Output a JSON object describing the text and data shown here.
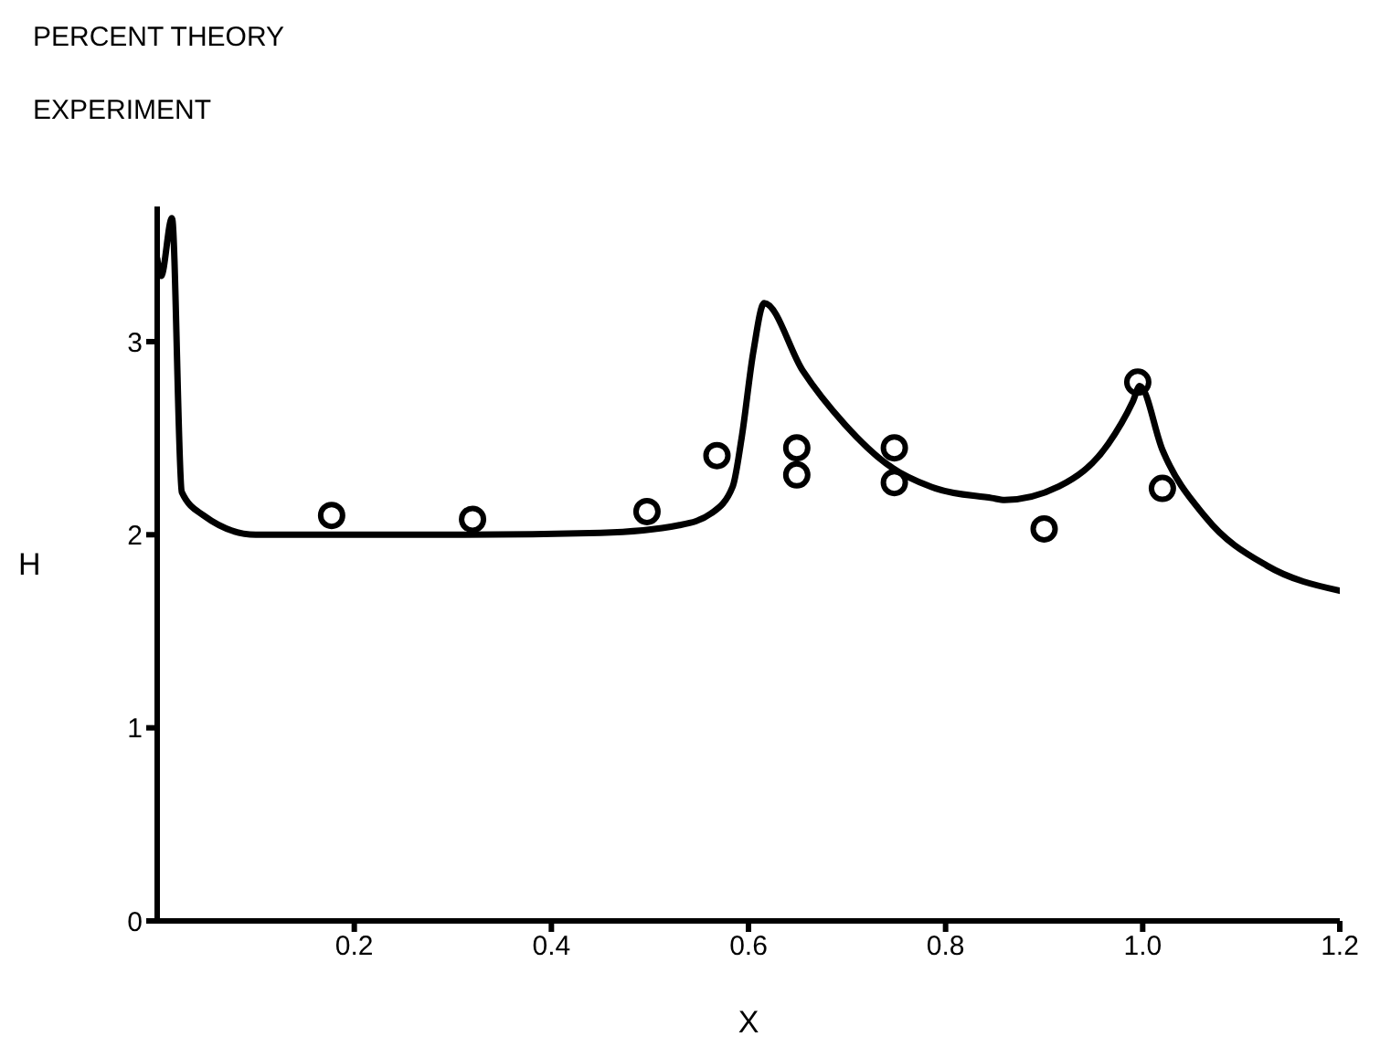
{
  "chart_data": {
    "type": "line",
    "xlabel": "X",
    "ylabel": "H",
    "annotations": [
      "PERCENT THEORY",
      "EXPERIMENT"
    ],
    "xlim": [
      0,
      1.2
    ],
    "xticks": [
      0.2,
      0.4,
      0.6,
      0.8,
      {
        "value": 1,
        "label": "1.0"
      },
      1.2
    ],
    "ylim": [
      0,
      3.7
    ],
    "yticks": [
      0,
      1,
      2,
      3
    ],
    "grid": false,
    "series": [
      {
        "color": "#000000",
        "marker": "none",
        "x": [
          0,
          0.004,
          0.015,
          0.025,
          0.047,
          0.1,
          0.2,
          0.3,
          0.45,
          0.53,
          0.562,
          0.584,
          0.593,
          0.605,
          0.616,
          0.655,
          0.698,
          0.742,
          0.79,
          0.847,
          0.86,
          0.915,
          0.965,
          0.99,
          0.997,
          1.02,
          1.064,
          1.126,
          1.2
        ],
        "values": [
          3.43,
          3.34,
          3.64,
          2.22,
          2.1,
          2.0,
          2.0,
          2.0,
          2.01,
          2.05,
          2.11,
          2.25,
          2.5,
          2.95,
          3.2,
          2.85,
          2.57,
          2.36,
          2.24,
          2.19,
          2.18,
          2.25,
          2.47,
          2.69,
          2.77,
          2.44,
          2.09,
          1.84,
          1.71
        ]
      },
      {
        "type": "scatter",
        "color": "#000000",
        "marker": "circle",
        "x": [
          0.177,
          0.32,
          0.497,
          0.568,
          0.649,
          0.649,
          0.748,
          0.748,
          0.9,
          0.995,
          1.02
        ],
        "values": [
          2.1,
          2.08,
          2.12,
          2.41,
          2.45,
          2.31,
          2.45,
          2.27,
          2.03,
          2.79,
          2.24
        ]
      }
    ]
  }
}
